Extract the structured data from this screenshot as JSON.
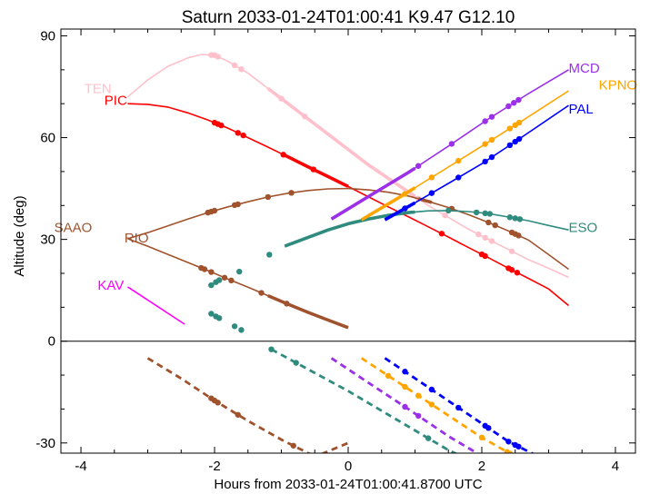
{
  "chart_data": {
    "type": "line",
    "title": "Saturn 2033-01-24T01:00:41  K9.47  G12.10",
    "xlabel": "Hours from 2033-01-24T01:00:41.8700 UTC",
    "ylabel": "Altitude (deg)",
    "xlim": [
      -4.3,
      4.3
    ],
    "ylim": [
      -33,
      92
    ],
    "xticks": [
      -4,
      -2,
      0,
      2,
      4
    ],
    "yticks": [
      -30,
      0,
      30,
      60,
      90
    ],
    "horizon_line": 0,
    "series": [
      {
        "name": "TEN",
        "color": "#ffc0cb",
        "x": [
          -3.3,
          -3.0,
          -2.7,
          -2.4,
          -2.2,
          -2.0,
          -1.8,
          -1.5,
          -1.2,
          -0.9,
          -0.6,
          -0.3,
          0.0,
          0.3,
          0.6,
          0.9,
          1.2,
          1.5,
          1.8,
          2.1,
          2.4,
          2.7,
          3.0,
          3.3
        ],
        "y": [
          72,
          77,
          81,
          83.5,
          84.5,
          84.3,
          82.5,
          79,
          74.5,
          70,
          65.5,
          61,
          56.5,
          52,
          48,
          44,
          40,
          36.5,
          33,
          30,
          27,
          24,
          21.5,
          18.8
        ],
        "thick_x": [
          -1.2,
          1.0
        ],
        "points_x": [
          -2.05,
          -2.0,
          -1.95,
          -1.7,
          -1.6,
          -1.0,
          -0.65,
          1.05,
          1.45,
          1.95,
          2.05,
          2.15,
          2.45
        ]
      },
      {
        "name": "PIC",
        "color": "#ff0000",
        "x": [
          -3.3,
          -3.0,
          -2.7,
          -2.4,
          -2.1,
          -1.8,
          -1.5,
          -1.2,
          -0.9,
          -0.6,
          -0.3,
          0.0,
          0.3,
          0.6,
          0.9,
          1.2,
          1.5,
          1.8,
          2.1,
          2.4,
          2.7,
          3.0,
          3.3
        ],
        "y": [
          70,
          69.8,
          69,
          67.3,
          65.2,
          62.8,
          60,
          57.2,
          54.3,
          51.4,
          48.5,
          45.6,
          42.6,
          39.6,
          36.7,
          33.7,
          30.7,
          27.6,
          24.6,
          21.5,
          18.5,
          15.4,
          10.5
        ],
        "thick_x": [
          -1.0,
          0.0
        ],
        "points_x": [
          -2.0,
          -1.95,
          -1.9,
          -1.65,
          -1.57,
          -0.97,
          -0.52,
          1.4,
          2.0,
          2.05,
          2.4,
          2.45,
          2.53
        ]
      },
      {
        "name": "SAAO",
        "color": "#a0522d",
        "x": [
          -3.3,
          -3.0,
          -2.7,
          -2.4,
          -2.1,
          -1.8,
          -1.5,
          -1.2,
          -0.9,
          -0.6,
          -0.3,
          0.0,
          0.3,
          0.6,
          0.9,
          1.2,
          1.5,
          1.8,
          2.1,
          2.4,
          2.7,
          3.0,
          3.3
        ],
        "y": [
          30.2,
          32,
          34,
          36,
          37.9,
          39.6,
          41.1,
          42.5,
          43.6,
          44.4,
          44.9,
          45.0,
          44.6,
          43.9,
          42.8,
          41.2,
          39.4,
          37.3,
          35,
          32.5,
          29.8,
          25.5,
          21.2
        ],
        "thick_x": [
          1.05,
          1.25
        ],
        "points_x": [
          -2.1,
          -2.05,
          -2.0,
          -1.7,
          -1.65,
          -1.2,
          -0.85,
          1.55,
          2.1,
          2.2,
          2.45,
          2.5,
          2.55
        ]
      },
      {
        "name": "RIO",
        "color": "#a0522d",
        "x": [
          -3.3,
          -3.0,
          -2.7,
          -2.4,
          -2.1,
          -1.8,
          -1.5,
          -1.2,
          -0.9,
          -0.6,
          -0.3,
          0.0
        ],
        "y": [
          30.2,
          28,
          25.6,
          23.2,
          20.8,
          18.3,
          15.9,
          13.4,
          10.9,
          8.5,
          6.2,
          4
        ],
        "thick_x": [
          -1.2,
          0.0
        ],
        "points_x": [
          -2.2,
          -2.15,
          -2.05,
          -1.85,
          -1.75,
          -1.3,
          -0.92
        ]
      },
      {
        "name": "KAV",
        "color": "#ff00ff",
        "x": [
          -3.3,
          -2.45
        ],
        "y": [
          16,
          5
        ],
        "thick_x": [],
        "points_x": []
      },
      {
        "name": "ESO",
        "color": "#2e8b7e",
        "x": [
          -0.95,
          -0.6,
          -0.3,
          0.0,
          0.3,
          0.6,
          0.9,
          1.2,
          1.5,
          1.8,
          2.1,
          2.4,
          2.7,
          3.0,
          3.3
        ],
        "y": [
          28,
          30.6,
          32.8,
          34.6,
          36,
          37.1,
          37.9,
          38.4,
          38.5,
          38.2,
          37.6,
          36.6,
          35.5,
          34.1,
          32.8
        ],
        "thick_x": [
          -0.95,
          1.0
        ],
        "points_x": [
          1.5,
          1.92,
          2.05,
          2.12,
          2.42,
          2.5,
          2.57
        ],
        "extra_points": [
          [
            -1.18,
            25.5
          ],
          [
            -2.05,
            16.5
          ],
          [
            -1.98,
            17.4
          ],
          [
            -1.93,
            18.0
          ],
          [
            -1.63,
            20.5
          ],
          [
            -2.05,
            8.1
          ],
          [
            -1.98,
            7.3
          ],
          [
            -1.93,
            6.8
          ],
          [
            -1.7,
            4.4
          ],
          [
            -1.6,
            3.3
          ]
        ]
      },
      {
        "name": "MCD",
        "color": "#9b30e8",
        "x": [
          -0.25,
          0.3,
          0.9,
          1.5,
          2.1,
          2.7,
          3.3
        ],
        "y": [
          36,
          42.6,
          49.7,
          57.5,
          65.5,
          73,
          80
        ],
        "thick_x": [
          -0.25,
          1.0
        ],
        "points_x": [
          1.05,
          1.55,
          2.05,
          2.15,
          2.4,
          2.48,
          2.55
        ]
      },
      {
        "name": "KPNO",
        "color": "#ffa500",
        "x": [
          0.2,
          0.8,
          1.4,
          2.0,
          2.6,
          3.3
        ],
        "y": [
          35.8,
          42.8,
          50.1,
          57.5,
          64.9,
          73.8
        ],
        "thick_x": [
          0.2,
          1.0
        ],
        "points_x": [
          0.85,
          1.25,
          1.65,
          2.05,
          2.15,
          2.42,
          2.5,
          2.56
        ]
      },
      {
        "name": "PAL",
        "color": "#0000ff",
        "x": [
          0.55,
          1.0,
          1.5,
          2.0,
          2.5,
          3.3
        ],
        "y": [
          35.8,
          40.8,
          46.5,
          52.3,
          58.8,
          69.5
        ],
        "thick_x": [
          0.55,
          1.0
        ],
        "points_x": [
          0.85,
          1.25,
          1.65,
          2.05,
          2.15,
          2.42,
          2.5,
          2.56
        ]
      }
    ],
    "below_horizon": [
      {
        "site": "SAAO/RIO",
        "color": "#a0522d",
        "x": [
          -3.0,
          -2.5,
          -2.0,
          -1.5,
          -1.0,
          -0.5
        ],
        "y": [
          -5,
          -11,
          -17.5,
          -23.5,
          -29,
          -34
        ],
        "points_x": [
          -2.05,
          -2.0,
          -1.95,
          -1.65,
          -0.82
        ]
      },
      {
        "site": "SAAO-tail",
        "color": "#a0522d",
        "x": [
          -0.55,
          0.0
        ],
        "y": [
          -34.5,
          -30
        ],
        "points_x": []
      },
      {
        "site": "ESO",
        "color": "#2e8b7e",
        "x": [
          -1.15,
          -0.6,
          0.0,
          0.5,
          1.0,
          1.5,
          1.65
        ],
        "y": [
          -2.4,
          -8.3,
          -14.7,
          -20.5,
          -26.3,
          -32.1,
          -33.5
        ],
        "points_x": [
          -1.15,
          -0.78,
          1.2
        ]
      },
      {
        "site": "MCD",
        "color": "#9b30e8",
        "x": [
          -0.25,
          0.3,
          0.9,
          1.5,
          2.1
        ],
        "y": [
          -5,
          -12.2,
          -20,
          -28,
          -35
        ],
        "points_x": [
          0.85,
          1.05
        ]
      },
      {
        "site": "KPNO",
        "color": "#ffa500",
        "x": [
          0.2,
          0.8,
          1.4,
          2.0,
          2.5
        ],
        "y": [
          -5,
          -12.8,
          -20.6,
          -28.4,
          -34
        ],
        "points_x": [
          0.6,
          0.85,
          1.05,
          1.25,
          2.0,
          2.38,
          2.42,
          2.5
        ]
      },
      {
        "site": "PAL",
        "color": "#0000ff",
        "x": [
          0.55,
          1.2,
          1.8,
          2.4,
          2.85
        ],
        "y": [
          -5,
          -13.6,
          -21.6,
          -29.6,
          -34
        ],
        "points_x": [
          0.85,
          1.25,
          1.65,
          2.05,
          2.1,
          2.4,
          2.5,
          2.55
        ]
      }
    ],
    "site_labels": [
      {
        "text": "TEN",
        "color": "#ffc0cb",
        "x": -3.95,
        "y": 74.5,
        "anchor": "start"
      },
      {
        "text": "PIC",
        "color": "#ff0000",
        "x": -3.65,
        "y": 71,
        "anchor": "start"
      },
      {
        "text": "SAAO",
        "color": "#a0522d",
        "x": -4.4,
        "y": 33.5,
        "anchor": "start"
      },
      {
        "text": "RIO",
        "color": "#a0522d",
        "x": -3.35,
        "y": 30.5,
        "anchor": "start"
      },
      {
        "text": "KAV",
        "color": "#ff00ff",
        "x": -3.75,
        "y": 16.5,
        "anchor": "start"
      },
      {
        "text": "MCD",
        "color": "#9b30e8",
        "x": 3.3,
        "y": 80.5,
        "anchor": "start"
      },
      {
        "text": "KPNO",
        "color": "#ffa500",
        "x": 3.75,
        "y": 75.5,
        "anchor": "start"
      },
      {
        "text": "PAL",
        "color": "#0000ff",
        "x": 3.3,
        "y": 68.5,
        "anchor": "start"
      },
      {
        "text": "ESO",
        "color": "#2e8b7e",
        "x": 3.3,
        "y": 33.5,
        "anchor": "start"
      }
    ]
  }
}
